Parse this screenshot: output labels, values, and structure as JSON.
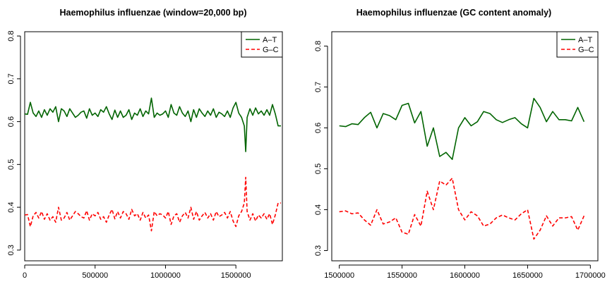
{
  "chart_data": [
    {
      "type": "line",
      "title": "Haemophilus influenzae (window=20,000 bp)",
      "xlabel": "",
      "ylabel": "",
      "xlim": [
        0,
        1830000
      ],
      "ylim": [
        0.275,
        0.81
      ],
      "x_ticks": [
        0,
        500000,
        1000000,
        1500000
      ],
      "y_ticks": [
        0.3,
        0.4,
        0.5,
        0.6,
        0.7,
        0.8
      ],
      "grid": false,
      "legend": {
        "position": "top-right",
        "entries": [
          "A–T",
          "G–C"
        ]
      },
      "colors": {
        "A-T": "#006400",
        "G-C": "#ff0000"
      },
      "x": [
        0,
        20000,
        40000,
        60000,
        80000,
        100000,
        120000,
        140000,
        160000,
        180000,
        200000,
        220000,
        240000,
        260000,
        280000,
        300000,
        320000,
        340000,
        360000,
        380000,
        400000,
        420000,
        440000,
        460000,
        480000,
        500000,
        520000,
        540000,
        560000,
        580000,
        600000,
        620000,
        640000,
        660000,
        680000,
        700000,
        720000,
        740000,
        760000,
        780000,
        800000,
        820000,
        840000,
        860000,
        880000,
        900000,
        920000,
        940000,
        960000,
        980000,
        1000000,
        1020000,
        1040000,
        1060000,
        1080000,
        1100000,
        1120000,
        1140000,
        1160000,
        1180000,
        1200000,
        1220000,
        1240000,
        1260000,
        1280000,
        1300000,
        1320000,
        1340000,
        1360000,
        1380000,
        1400000,
        1420000,
        1440000,
        1460000,
        1480000,
        1500000,
        1520000,
        1540000,
        1560000,
        1570000,
        1580000,
        1600000,
        1620000,
        1640000,
        1660000,
        1680000,
        1700000,
        1720000,
        1740000,
        1760000,
        1780000,
        1800000,
        1820000
      ],
      "series": [
        {
          "name": "A–T",
          "style": "solid",
          "values": [
            0.618,
            0.617,
            0.645,
            0.62,
            0.612,
            0.625,
            0.61,
            0.628,
            0.615,
            0.63,
            0.622,
            0.635,
            0.6,
            0.63,
            0.625,
            0.612,
            0.63,
            0.62,
            0.61,
            0.615,
            0.622,
            0.625,
            0.608,
            0.63,
            0.615,
            0.62,
            0.612,
            0.628,
            0.622,
            0.635,
            0.618,
            0.605,
            0.627,
            0.61,
            0.625,
            0.61,
            0.615,
            0.628,
            0.605,
            0.62,
            0.615,
            0.63,
            0.612,
            0.625,
            0.618,
            0.655,
            0.61,
            0.62,
            0.615,
            0.618,
            0.625,
            0.61,
            0.64,
            0.62,
            0.615,
            0.635,
            0.62,
            0.612,
            0.625,
            0.6,
            0.628,
            0.61,
            0.63,
            0.62,
            0.612,
            0.625,
            0.615,
            0.63,
            0.61,
            0.622,
            0.618,
            0.612,
            0.625,
            0.61,
            0.632,
            0.645,
            0.62,
            0.61,
            0.59,
            0.53,
            0.61,
            0.63,
            0.615,
            0.632,
            0.618,
            0.625,
            0.615,
            0.628,
            0.615,
            0.64,
            0.618,
            0.59,
            0.59
          ]
        },
        {
          "name": "G–C",
          "style": "dashed",
          "values": [
            0.382,
            0.383,
            0.355,
            0.38,
            0.388,
            0.375,
            0.39,
            0.372,
            0.385,
            0.37,
            0.378,
            0.365,
            0.4,
            0.37,
            0.375,
            0.388,
            0.37,
            0.38,
            0.39,
            0.385,
            0.378,
            0.375,
            0.392,
            0.37,
            0.385,
            0.38,
            0.388,
            0.372,
            0.378,
            0.365,
            0.382,
            0.395,
            0.373,
            0.39,
            0.375,
            0.39,
            0.385,
            0.372,
            0.395,
            0.38,
            0.385,
            0.37,
            0.388,
            0.375,
            0.382,
            0.345,
            0.39,
            0.38,
            0.385,
            0.382,
            0.375,
            0.39,
            0.36,
            0.38,
            0.385,
            0.365,
            0.38,
            0.388,
            0.375,
            0.4,
            0.372,
            0.39,
            0.37,
            0.38,
            0.388,
            0.375,
            0.385,
            0.37,
            0.39,
            0.378,
            0.382,
            0.388,
            0.375,
            0.39,
            0.368,
            0.355,
            0.38,
            0.39,
            0.41,
            0.47,
            0.39,
            0.37,
            0.385,
            0.368,
            0.382,
            0.375,
            0.385,
            0.372,
            0.385,
            0.36,
            0.382,
            0.41,
            0.41
          ]
        }
      ]
    },
    {
      "type": "line",
      "title": "Haemophilus influenzae (GC content anomaly)",
      "xlabel": "",
      "ylabel": "",
      "xlim": [
        1494000,
        1706000
      ],
      "ylim": [
        0.275,
        0.835
      ],
      "x_ticks": [
        1500000,
        1550000,
        1600000,
        1650000,
        1700000
      ],
      "y_ticks": [
        0.3,
        0.4,
        0.5,
        0.6,
        0.7,
        0.8
      ],
      "grid": false,
      "legend": {
        "position": "top-right",
        "entries": [
          "A–T",
          "G–C"
        ]
      },
      "colors": {
        "A-T": "#006400",
        "G-C": "#ff0000"
      },
      "x": [
        1500000,
        1505000,
        1510000,
        1515000,
        1520000,
        1525000,
        1530000,
        1535000,
        1540000,
        1545000,
        1550000,
        1555000,
        1560000,
        1565000,
        1570000,
        1575000,
        1580000,
        1585000,
        1590000,
        1595000,
        1600000,
        1605000,
        1610000,
        1615000,
        1620000,
        1625000,
        1630000,
        1635000,
        1640000,
        1645000,
        1650000,
        1655000,
        1660000,
        1665000,
        1670000,
        1675000,
        1680000,
        1685000,
        1690000,
        1695000
      ],
      "series": [
        {
          "name": "A–T",
          "style": "solid",
          "values": [
            0.605,
            0.603,
            0.61,
            0.608,
            0.625,
            0.638,
            0.6,
            0.635,
            0.63,
            0.62,
            0.655,
            0.66,
            0.612,
            0.64,
            0.555,
            0.6,
            0.53,
            0.54,
            0.523,
            0.6,
            0.625,
            0.605,
            0.615,
            0.64,
            0.635,
            0.62,
            0.613,
            0.62,
            0.625,
            0.61,
            0.6,
            0.672,
            0.65,
            0.615,
            0.64,
            0.62,
            0.62,
            0.617,
            0.65,
            0.615
          ]
        },
        {
          "name": "G–C",
          "style": "dashed",
          "values": [
            0.395,
            0.397,
            0.39,
            0.392,
            0.375,
            0.362,
            0.4,
            0.365,
            0.37,
            0.38,
            0.345,
            0.34,
            0.388,
            0.36,
            0.445,
            0.4,
            0.47,
            0.46,
            0.477,
            0.4,
            0.375,
            0.395,
            0.385,
            0.36,
            0.365,
            0.38,
            0.387,
            0.38,
            0.375,
            0.39,
            0.4,
            0.328,
            0.35,
            0.385,
            0.36,
            0.38,
            0.38,
            0.383,
            0.35,
            0.385
          ]
        }
      ]
    }
  ]
}
